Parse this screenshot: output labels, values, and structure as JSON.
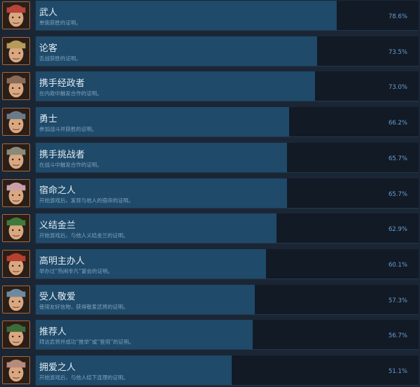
{
  "colors": {
    "fill": "#1f4a69",
    "track": "#121a26",
    "percent": "#6a9fd0",
    "background": "#1b2635"
  },
  "achievements": [
    {
      "title": "武人",
      "description": "单挑获胜的证明。",
      "percent": "78.6%",
      "value": 78.6,
      "icon": "warrior-portrait",
      "tone": "#b8443a"
    },
    {
      "title": "论客",
      "description": "舌战获胜的证明。",
      "percent": "73.5%",
      "value": 73.5,
      "icon": "debater-portrait",
      "tone": "#b89a5a"
    },
    {
      "title": "携手经政者",
      "description": "在内政中触发合作的证明。",
      "percent": "73.0%",
      "value": 73.0,
      "icon": "helmet-portrait",
      "tone": "#8a6a5a"
    },
    {
      "title": "勇士",
      "description": "参加战斗并获胜的证明。",
      "percent": "66.2%",
      "value": 66.2,
      "icon": "soldier-portrait",
      "tone": "#6a7a8a"
    },
    {
      "title": "携手挑战者",
      "description": "在战斗中触发合作的证明。",
      "percent": "65.7%",
      "value": 65.7,
      "icon": "general-portrait",
      "tone": "#8a8a7a"
    },
    {
      "title": "宿命之人",
      "description": "开始游戏后，发现与他人的宿命的证明。",
      "percent": "65.7%",
      "value": 65.7,
      "icon": "lady-portrait",
      "tone": "#c9a0a8"
    },
    {
      "title": "义结金兰",
      "description": "开始游戏后，与他人义结金兰的证明。",
      "percent": "62.9%",
      "value": 62.9,
      "icon": "guan-yu-portrait",
      "tone": "#3f7a3a"
    },
    {
      "title": "高明主办人",
      "description": "举办过“热闹非凡”宴会的证明。",
      "percent": "60.1%",
      "value": 60.1,
      "icon": "host-portrait",
      "tone": "#b8402e"
    },
    {
      "title": "受人敬爱",
      "description": "使用友好信物，获得敬爱武将的证明。",
      "percent": "57.3%",
      "value": 57.3,
      "icon": "scholar-portrait",
      "tone": "#6e8aa0"
    },
    {
      "title": "推荐人",
      "description": "拜访武将并成功“推举”或“登用”的证明。",
      "percent": "56.7%",
      "value": 56.7,
      "icon": "official-portrait",
      "tone": "#3f6a3a"
    },
    {
      "title": "拥爱之人",
      "description": "开始游戏后，与他人结下连理的证明。",
      "percent": "51.1%",
      "value": 51.1,
      "icon": "maiden-portrait",
      "tone": "#b88a7a"
    }
  ]
}
